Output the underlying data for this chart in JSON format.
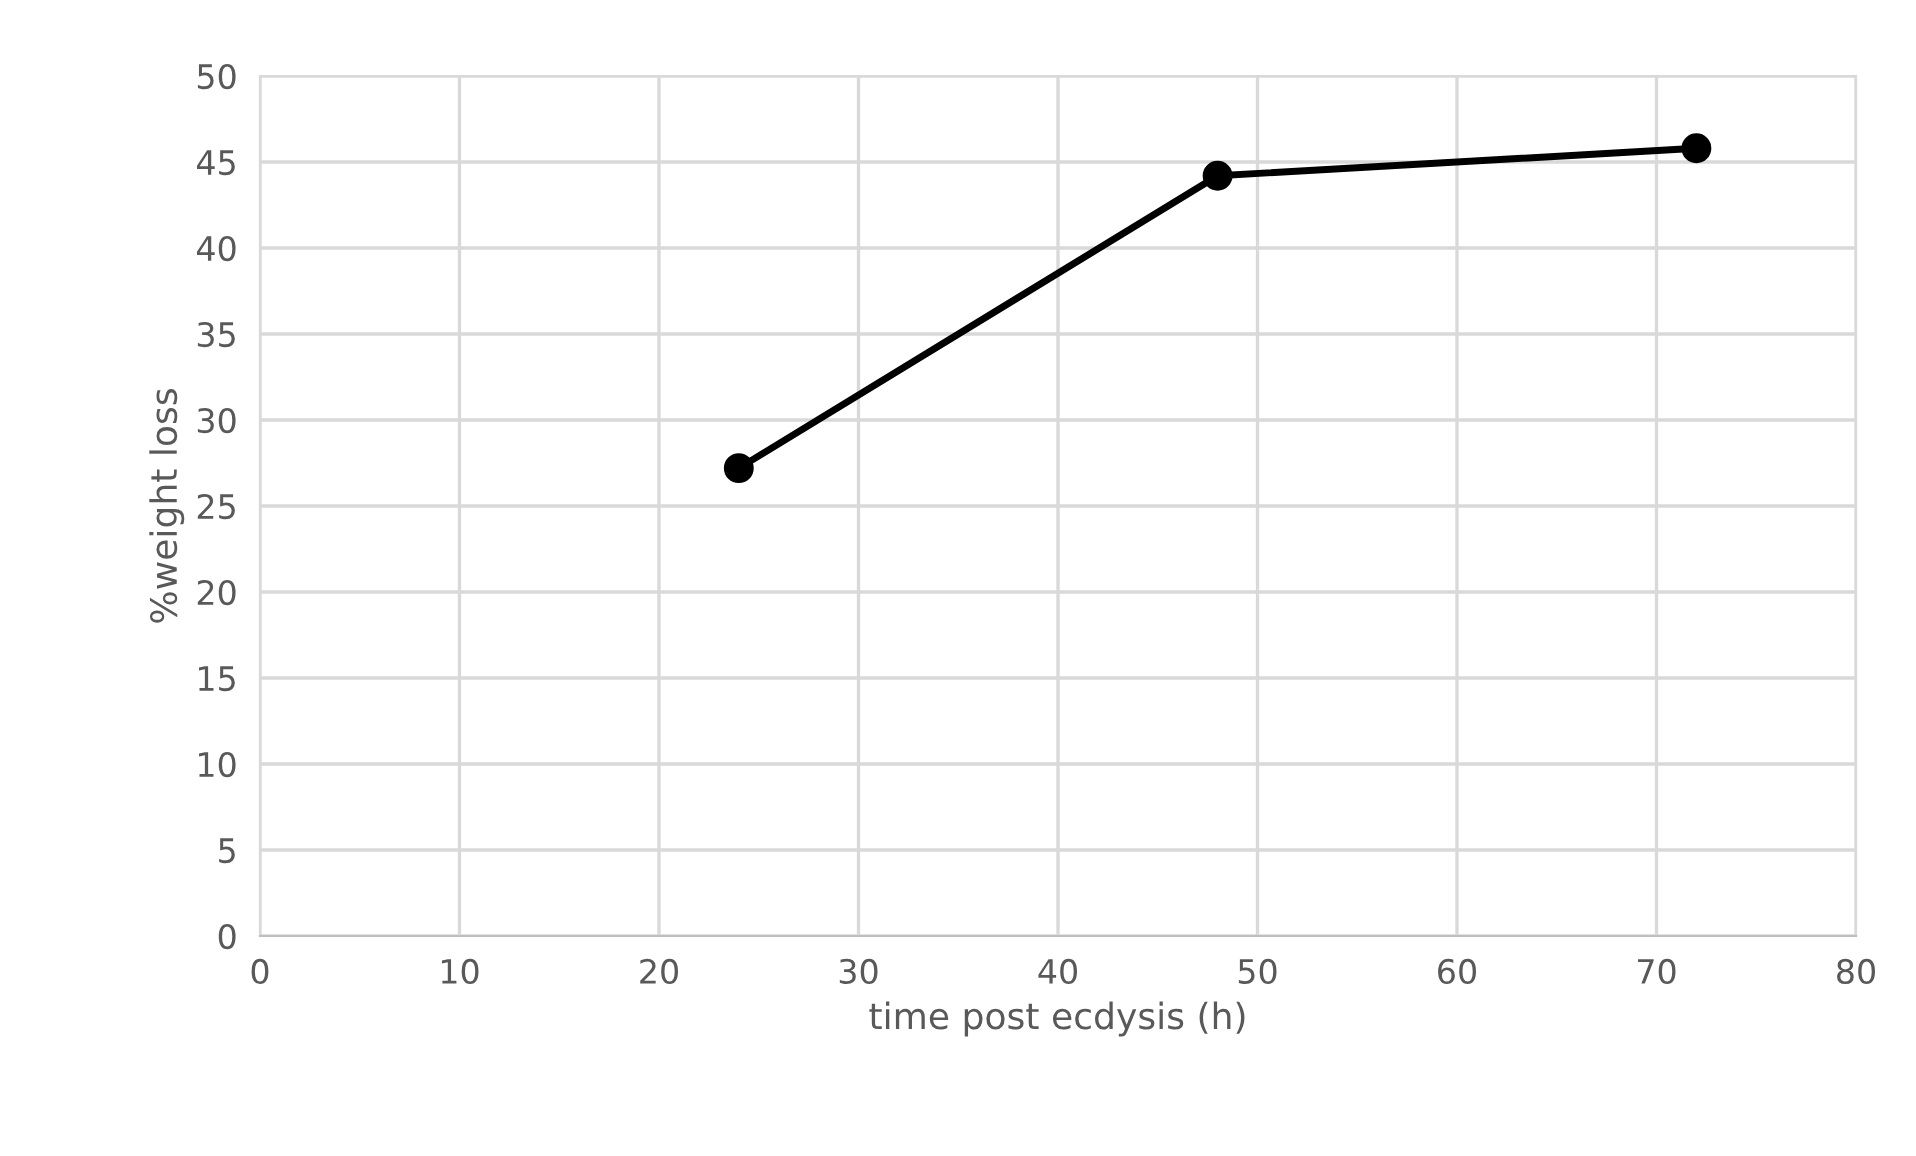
{
  "chart_data": {
    "type": "line",
    "xlabel": "time post ecdysis (h)",
    "ylabel": "%weight loss",
    "x": [
      24,
      48,
      72
    ],
    "series": [
      {
        "color": "#000000",
        "values": [
          27.2,
          44.2,
          45.8
        ]
      }
    ],
    "xlim": [
      0,
      80
    ],
    "xticks": [
      0,
      10,
      20,
      30,
      40,
      50,
      60,
      70,
      80
    ],
    "ylim": [
      0,
      50
    ],
    "yticks": [
      0,
      5,
      10,
      15,
      20,
      25,
      30,
      35,
      40,
      45,
      50
    ],
    "grid": true,
    "marker": "circle",
    "line_style": "solid"
  }
}
